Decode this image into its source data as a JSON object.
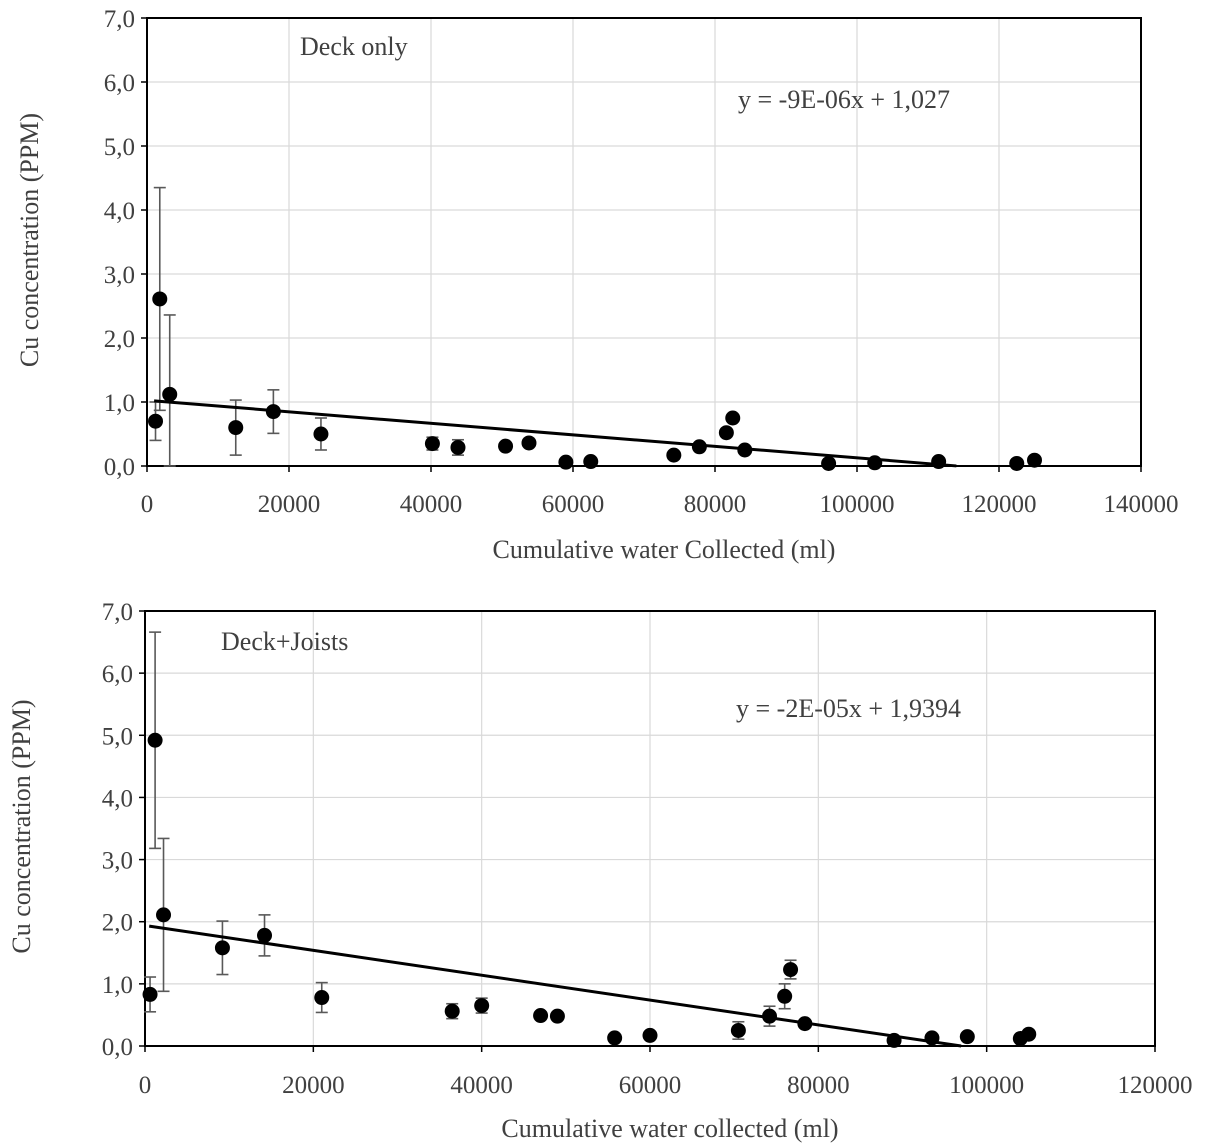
{
  "chart_data": [
    {
      "type": "scatter",
      "title": "",
      "annotation_label": "Deck only",
      "equation": "y = -9E-06x + 1,027",
      "xlabel": "Cumulative water Collected (ml)",
      "ylabel": "Cu concentration (PPM)",
      "xlim": [
        0,
        140000
      ],
      "ylim": [
        0,
        7
      ],
      "x_ticks": [
        0,
        20000,
        40000,
        60000,
        80000,
        100000,
        120000,
        140000
      ],
      "x_tick_labels": [
        "0",
        "20000",
        "40000",
        "60000",
        "80000",
        "100000",
        "120000",
        "140000"
      ],
      "y_ticks": [
        0,
        1,
        2,
        3,
        4,
        5,
        6,
        7
      ],
      "y_tick_labels": [
        "0,0",
        "1,0",
        "2,0",
        "3,0",
        "4,0",
        "5,0",
        "6,0",
        "7,0"
      ],
      "grid": true,
      "trendline": {
        "slope": -9e-06,
        "intercept": 1.027,
        "x_start": 1000,
        "x_end": 114000
      },
      "points": [
        {
          "x": 1200,
          "y": 0.7,
          "err": 0.3
        },
        {
          "x": 1800,
          "y": 2.61,
          "err": 1.74
        },
        {
          "x": 3200,
          "y": 1.12,
          "err": 1.24
        },
        {
          "x": 12500,
          "y": 0.6,
          "err": 0.43
        },
        {
          "x": 17800,
          "y": 0.85,
          "err": 0.34
        },
        {
          "x": 24500,
          "y": 0.5,
          "err": 0.25
        },
        {
          "x": 40200,
          "y": 0.35,
          "err": 0.1
        },
        {
          "x": 43800,
          "y": 0.29,
          "err": 0.12
        },
        {
          "x": 50500,
          "y": 0.31,
          "err": 0.05
        },
        {
          "x": 53800,
          "y": 0.36,
          "err": 0.05
        },
        {
          "x": 59000,
          "y": 0.06,
          "err": 0.02
        },
        {
          "x": 62500,
          "y": 0.07,
          "err": 0.02
        },
        {
          "x": 74200,
          "y": 0.17,
          "err": 0.03
        },
        {
          "x": 77800,
          "y": 0.3,
          "err": 0.04
        },
        {
          "x": 81600,
          "y": 0.52,
          "err": 0.04
        },
        {
          "x": 82500,
          "y": 0.75,
          "err": 0.05
        },
        {
          "x": 84200,
          "y": 0.25,
          "err": 0.03
        },
        {
          "x": 96000,
          "y": 0.04,
          "err": 0.02
        },
        {
          "x": 102500,
          "y": 0.05,
          "err": 0.02
        },
        {
          "x": 111500,
          "y": 0.07,
          "err": 0.02
        },
        {
          "x": 122500,
          "y": 0.04,
          "err": 0.02
        },
        {
          "x": 125000,
          "y": 0.09,
          "err": 0.02
        }
      ]
    },
    {
      "type": "scatter",
      "title": "",
      "annotation_label": "Deck+Joists",
      "equation": "y = -2E-05x + 1,9394",
      "xlabel": "Cumulative water collected (ml)",
      "ylabel": "Cu concentration (PPM)",
      "xlim": [
        0,
        120000
      ],
      "ylim": [
        0,
        7
      ],
      "x_ticks": [
        0,
        20000,
        40000,
        60000,
        80000,
        100000,
        120000
      ],
      "x_tick_labels": [
        "0",
        "20000",
        "40000",
        "60000",
        "80000",
        "100000",
        "120000"
      ],
      "y_ticks": [
        0,
        1,
        2,
        3,
        4,
        5,
        6,
        7
      ],
      "y_tick_labels": [
        "0,0",
        "1,0",
        "2,0",
        "3,0",
        "4,0",
        "5,0",
        "6,0",
        "7,0"
      ],
      "grid": true,
      "trendline": {
        "slope": -2e-05,
        "intercept": 1.9394,
        "x_start": 500,
        "x_end": 96969
      },
      "points": [
        {
          "x": 600,
          "y": 0.83,
          "err": 0.28
        },
        {
          "x": 1200,
          "y": 4.92,
          "err": 1.74
        },
        {
          "x": 2200,
          "y": 2.11,
          "err": 1.23
        },
        {
          "x": 9200,
          "y": 1.58,
          "err": 0.43
        },
        {
          "x": 14200,
          "y": 1.78,
          "err": 0.33
        },
        {
          "x": 21000,
          "y": 0.78,
          "err": 0.24
        },
        {
          "x": 36500,
          "y": 0.56,
          "err": 0.12
        },
        {
          "x": 40000,
          "y": 0.65,
          "err": 0.12
        },
        {
          "x": 47000,
          "y": 0.49,
          "err": 0.05
        },
        {
          "x": 49000,
          "y": 0.48,
          "err": 0.05
        },
        {
          "x": 55800,
          "y": 0.13,
          "err": 0.03
        },
        {
          "x": 60000,
          "y": 0.17,
          "err": 0.03
        },
        {
          "x": 70500,
          "y": 0.25,
          "err": 0.14
        },
        {
          "x": 74200,
          "y": 0.48,
          "err": 0.16
        },
        {
          "x": 76000,
          "y": 0.8,
          "err": 0.2
        },
        {
          "x": 76700,
          "y": 1.23,
          "err": 0.15
        },
        {
          "x": 78400,
          "y": 0.36,
          "err": 0.05
        },
        {
          "x": 89000,
          "y": 0.09,
          "err": 0.02
        },
        {
          "x": 93500,
          "y": 0.13,
          "err": 0.02
        },
        {
          "x": 97700,
          "y": 0.15,
          "err": 0.02
        },
        {
          "x": 104000,
          "y": 0.12,
          "err": 0.02
        },
        {
          "x": 105000,
          "y": 0.19,
          "err": 0.02
        }
      ]
    }
  ]
}
